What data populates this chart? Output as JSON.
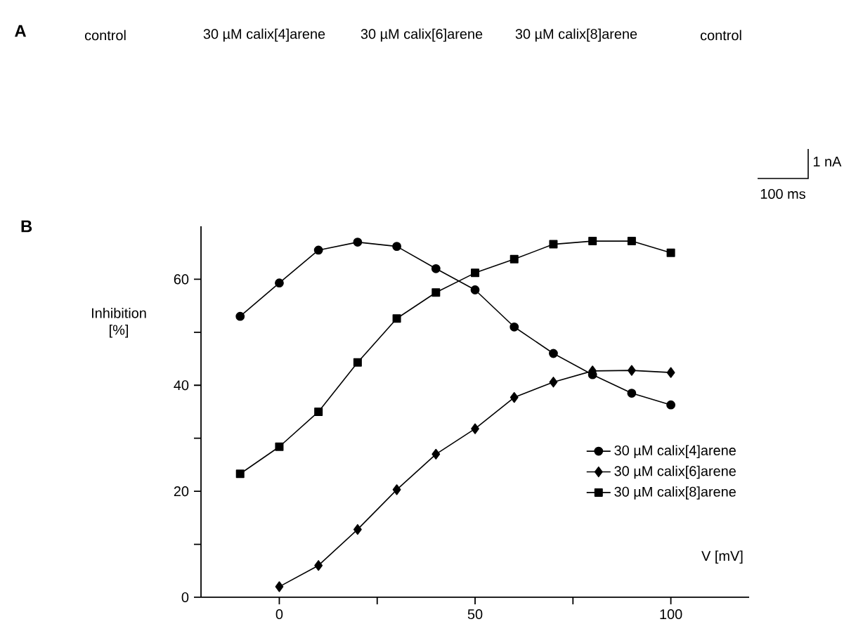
{
  "chart_data": [
    {
      "type": "other",
      "annotations": [
        "A",
        "control",
        "30 µM calix[4]arene",
        "30 µM calix[6]arene",
        "30 µM calix[8]arene",
        "control",
        "1 nA",
        "100 ms"
      ]
    },
    {
      "type": "line",
      "annotations": [
        "B"
      ],
      "xlabel": "V [mV]",
      "ylabel": "Inhibition [%]",
      "xlim": [
        -20,
        120
      ],
      "ylim": [
        0,
        70
      ],
      "xticks": [
        0,
        {
          "value": 25,
          "label": null
        },
        50,
        {
          "value": 75,
          "label": null
        },
        100
      ],
      "yticks": [
        0,
        {
          "value": 10,
          "label": null
        },
        20,
        {
          "value": 30,
          "label": null
        },
        40,
        {
          "value": 50,
          "label": null
        },
        60
      ],
      "legend": "bottom right",
      "x": [
        -10,
        0,
        10,
        20,
        30,
        40,
        50,
        60,
        70,
        80,
        90,
        100
      ],
      "series": [
        {
          "name": "30 µM calix[4]arene",
          "color": "#000000",
          "marker": "circle",
          "values": [
            53,
            59.3,
            65.5,
            67,
            66.2,
            62,
            58,
            51,
            46,
            42,
            38.5,
            36.3
          ]
        },
        {
          "name": "30 µM calix[6]arene",
          "color": "#000000",
          "marker": "diamond",
          "values": [
            null,
            2,
            6,
            12.8,
            20.3,
            27,
            31.8,
            37.7,
            40.6,
            42.7,
            42.8,
            42.4
          ]
        },
        {
          "name": "30 µM calix[8]arene",
          "color": "#000000",
          "marker": "square",
          "values": [
            23.3,
            28.4,
            35,
            44.3,
            52.6,
            57.5,
            61.2,
            63.8,
            66.6,
            67.2,
            67.2,
            65
          ]
        }
      ]
    }
  ]
}
